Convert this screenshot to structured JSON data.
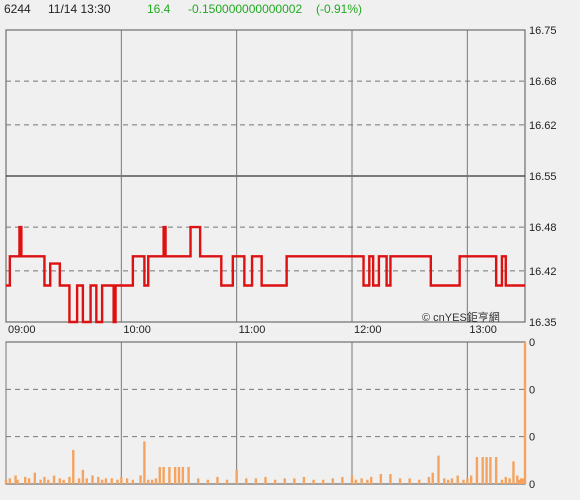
{
  "header": {
    "symbol": "6244",
    "datetime": "11/14 13:30",
    "price": "16.4",
    "change": "-0.150000000000002",
    "change_pct": "(-0.91%)"
  },
  "watermark": "© cnYES鉅亨網",
  "colors": {
    "background": "#f0f0f0",
    "price_line": "#dd1111",
    "volume_bar": "#f4a460",
    "price_text": "#22aa22",
    "grid": "#777777"
  },
  "chart_data": [
    {
      "type": "line",
      "name": "intraday-price",
      "ylim": [
        16.35,
        16.75
      ],
      "y_ticks": [
        "16.75",
        "16.68",
        "16.62",
        "16.55",
        "16.48",
        "16.42",
        "16.35"
      ],
      "reference_price": 16.55,
      "x_time_range": [
        "09:00",
        "13:30"
      ],
      "x_ticks": [
        "09:00",
        "10:00",
        "11:00",
        "12:00",
        "13:00"
      ],
      "x": [
        "09:00",
        "09:02",
        "09:03",
        "09:06",
        "09:07",
        "09:08",
        "09:12",
        "09:13",
        "09:15",
        "09:17",
        "09:18",
        "09:20",
        "09:21",
        "09:23",
        "09:25",
        "09:28",
        "09:33",
        "09:37",
        "09:38",
        "09:40",
        "09:41",
        "09:42",
        "09:44",
        "09:46",
        "09:47",
        "09:48",
        "09:50",
        "09:52",
        "09:53",
        "09:56",
        "09:57",
        "09:58",
        "10:00",
        "10:05",
        "10:06",
        "10:10",
        "10:11",
        "10:12",
        "10:13",
        "10:14",
        "10:20",
        "10:22",
        "10:23",
        "10:25",
        "10:35",
        "10:36",
        "10:37",
        "10:38",
        "10:41",
        "10:42",
        "10:50",
        "10:52",
        "10:57",
        "10:58",
        "11:00",
        "11:03",
        "11:04",
        "11:07",
        "11:08",
        "11:09",
        "11:12",
        "11:13",
        "11:25",
        "11:26",
        "11:28",
        "11:30",
        "11:31",
        "11:32",
        "11:35",
        "11:40",
        "11:45",
        "11:50",
        "11:55",
        "12:00",
        "12:05",
        "12:06",
        "12:07",
        "12:09",
        "12:10",
        "12:11",
        "12:13",
        "12:14",
        "12:17",
        "12:18",
        "12:19",
        "12:20",
        "12:22",
        "12:23",
        "12:40",
        "12:41",
        "12:45",
        "12:55",
        "12:56",
        "13:00",
        "13:15",
        "13:16",
        "13:17",
        "13:18",
        "13:20",
        "13:25",
        "13:30"
      ],
      "values": [
        16.4,
        16.44,
        16.44,
        16.44,
        16.48,
        16.44,
        16.44,
        16.44,
        16.44,
        16.44,
        16.44,
        16.4,
        16.4,
        16.43,
        16.43,
        16.4,
        16.35,
        16.4,
        16.4,
        16.35,
        16.35,
        16.35,
        16.4,
        16.4,
        16.35,
        16.35,
        16.4,
        16.4,
        16.4,
        16.35,
        16.4,
        16.4,
        16.4,
        16.4,
        16.44,
        16.44,
        16.44,
        16.4,
        16.4,
        16.44,
        16.44,
        16.48,
        16.44,
        16.44,
        16.44,
        16.48,
        16.48,
        16.48,
        16.44,
        16.44,
        16.44,
        16.4,
        16.4,
        16.44,
        16.44,
        16.44,
        16.4,
        16.4,
        16.44,
        16.44,
        16.44,
        16.4,
        16.4,
        16.44,
        16.44,
        16.44,
        16.44,
        16.44,
        16.44,
        16.44,
        16.44,
        16.44,
        16.44,
        16.44,
        16.44,
        16.4,
        16.4,
        16.44,
        16.44,
        16.4,
        16.4,
        16.44,
        16.44,
        16.4,
        16.4,
        16.44,
        16.44,
        16.44,
        16.44,
        16.4,
        16.4,
        16.4,
        16.44,
        16.44,
        16.4,
        16.4,
        16.4,
        16.44,
        16.4,
        16.4,
        16.4
      ]
    },
    {
      "type": "bar",
      "name": "volume",
      "y_ticks": [
        "0",
        "0",
        "0",
        "0"
      ],
      "x_time_range": [
        "09:00",
        "13:30"
      ],
      "x": [
        "09:00",
        "09:02",
        "09:05",
        "09:06",
        "09:10",
        "09:12",
        "09:15",
        "09:18",
        "09:20",
        "09:22",
        "09:25",
        "09:28",
        "09:30",
        "09:33",
        "09:35",
        "09:38",
        "09:40",
        "09:42",
        "09:45",
        "09:48",
        "09:50",
        "09:52",
        "09:55",
        "09:58",
        "10:00",
        "10:03",
        "10:06",
        "10:10",
        "10:12",
        "10:14",
        "10:16",
        "10:18",
        "10:20",
        "10:22",
        "10:25",
        "10:28",
        "10:30",
        "10:32",
        "10:35",
        "10:40",
        "10:45",
        "10:50",
        "10:55",
        "11:00",
        "11:05",
        "11:10",
        "11:15",
        "11:20",
        "11:25",
        "11:30",
        "11:35",
        "11:40",
        "11:45",
        "11:50",
        "11:55",
        "12:00",
        "12:02",
        "12:05",
        "12:08",
        "12:10",
        "12:15",
        "12:20",
        "12:25",
        "12:30",
        "12:35",
        "12:40",
        "12:42",
        "12:45",
        "12:48",
        "12:50",
        "12:52",
        "12:55",
        "12:58",
        "13:00",
        "13:02",
        "13:05",
        "13:08",
        "13:10",
        "13:12",
        "13:15",
        "13:18",
        "13:20",
        "13:22",
        "13:24",
        "13:26",
        "13:27",
        "13:28",
        "13:29",
        "13:30"
      ],
      "values": [
        0.03,
        0.04,
        0.06,
        0.03,
        0.05,
        0.04,
        0.08,
        0.03,
        0.05,
        0.03,
        0.06,
        0.04,
        0.03,
        0.05,
        0.24,
        0.04,
        0.1,
        0.04,
        0.06,
        0.05,
        0.03,
        0.04,
        0.04,
        0.03,
        0.05,
        0.04,
        0.03,
        0.06,
        0.3,
        0.03,
        0.03,
        0.04,
        0.12,
        0.12,
        0.12,
        0.12,
        0.12,
        0.12,
        0.12,
        0.04,
        0.03,
        0.05,
        0.03,
        0.1,
        0.04,
        0.04,
        0.05,
        0.03,
        0.04,
        0.04,
        0.05,
        0.03,
        0.03,
        0.04,
        0.05,
        0.06,
        0.03,
        0.04,
        0.03,
        0.05,
        0.07,
        0.07,
        0.04,
        0.04,
        0.03,
        0.05,
        0.08,
        0.2,
        0.04,
        0.03,
        0.04,
        0.06,
        0.03,
        0.04,
        0.06,
        0.19,
        0.19,
        0.19,
        0.19,
        0.19,
        0.03,
        0.05,
        0.04,
        0.16,
        0.06,
        0.03,
        0.04,
        0.04,
        1.0
      ]
    }
  ]
}
